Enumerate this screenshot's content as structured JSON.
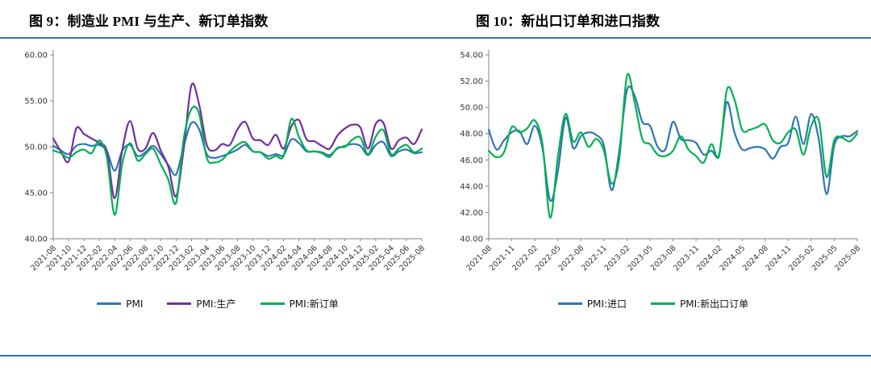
{
  "page": {
    "background": "#ffffff",
    "divider_color": "#2E75B6"
  },
  "chart_data": [
    {
      "type": "line",
      "title": "图 9：制造业 PMI 与生产、新订单指数",
      "ylim": [
        40,
        60
      ],
      "yticks": [
        40,
        45,
        50,
        55,
        60
      ],
      "ytick_format": "2dp",
      "x_tick_every": 2,
      "grid": false,
      "legend_position": "bottom",
      "x": [
        "2021-08",
        "2021-09",
        "2021-10",
        "2021-11",
        "2021-12",
        "2022-01",
        "2022-02",
        "2022-03",
        "2022-04",
        "2022-05",
        "2022-06",
        "2022-07",
        "2022-08",
        "2022-09",
        "2022-10",
        "2022-11",
        "2022-12",
        "2023-01",
        "2023-02",
        "2023-03",
        "2023-04",
        "2023-05",
        "2023-06",
        "2023-07",
        "2023-08",
        "2023-09",
        "2023-10",
        "2023-11",
        "2023-12",
        "2024-01",
        "2024-02",
        "2024-03",
        "2024-04",
        "2024-05",
        "2024-06",
        "2024-07",
        "2024-08",
        "2024-09",
        "2024-10",
        "2024-11",
        "2024-12",
        "2025-01",
        "2025-02",
        "2025-03",
        "2025-04",
        "2025-05",
        "2025-06",
        "2025-07",
        "2025-08"
      ],
      "series": [
        {
          "name": "PMI",
          "color": "#2E75B6",
          "values": [
            50.1,
            49.6,
            49.2,
            50.1,
            50.3,
            50.1,
            50.2,
            49.5,
            47.4,
            49.6,
            50.2,
            49.0,
            49.4,
            50.1,
            49.2,
            48.0,
            47.0,
            50.1,
            52.6,
            51.9,
            49.2,
            48.8,
            49.0,
            49.3,
            49.7,
            50.2,
            49.5,
            49.4,
            49.0,
            49.2,
            49.1,
            50.8,
            50.4,
            49.5,
            49.5,
            49.4,
            49.1,
            49.8,
            50.1,
            50.3,
            50.1,
            49.1,
            50.2,
            50.5,
            49.0,
            49.5,
            49.7,
            49.3,
            49.4
          ]
        },
        {
          "name": "PMI:生产",
          "color": "#7030A0",
          "values": [
            50.9,
            49.5,
            48.4,
            52.0,
            51.4,
            50.9,
            50.4,
            49.5,
            44.4,
            49.7,
            52.8,
            49.8,
            49.8,
            51.5,
            49.6,
            47.8,
            44.6,
            49.8,
            56.7,
            54.6,
            50.2,
            49.6,
            50.3,
            50.2,
            51.9,
            52.7,
            50.9,
            50.7,
            50.2,
            51.3,
            49.8,
            52.2,
            52.9,
            50.8,
            50.6,
            50.1,
            49.8,
            51.2,
            52.0,
            52.4,
            52.1,
            49.8,
            52.5,
            52.6,
            49.8,
            50.7,
            51.0,
            50.3,
            51.9
          ]
        },
        {
          "name": "PMI:新订单",
          "color": "#00B050",
          "values": [
            49.6,
            49.3,
            48.8,
            49.4,
            49.7,
            49.3,
            50.7,
            48.8,
            42.6,
            48.2,
            50.4,
            48.5,
            49.2,
            49.8,
            48.1,
            46.4,
            43.9,
            50.9,
            54.1,
            53.6,
            48.8,
            48.3,
            48.6,
            49.5,
            50.2,
            50.5,
            49.5,
            49.4,
            48.7,
            49.0,
            49.0,
            53.0,
            51.1,
            49.6,
            49.5,
            49.3,
            48.9,
            49.9,
            50.0,
            50.8,
            51.0,
            49.2,
            51.1,
            51.8,
            49.2,
            49.8,
            50.2,
            49.4,
            49.8
          ]
        }
      ]
    },
    {
      "type": "line",
      "title": "图 10：新出口订单和进口指数",
      "ylim": [
        40,
        54
      ],
      "yticks": [
        40,
        42,
        44,
        46,
        48,
        50,
        52,
        54
      ],
      "ytick_format": "2dp",
      "x_tick_every": 3,
      "grid": false,
      "legend_position": "bottom",
      "x": [
        "2021-08",
        "2021-09",
        "2021-10",
        "2021-11",
        "2021-12",
        "2022-01",
        "2022-02",
        "2022-03",
        "2022-04",
        "2022-05",
        "2022-06",
        "2022-07",
        "2022-08",
        "2022-09",
        "2022-10",
        "2022-11",
        "2022-12",
        "2023-01",
        "2023-02",
        "2023-03",
        "2023-04",
        "2023-05",
        "2023-06",
        "2023-07",
        "2023-08",
        "2023-09",
        "2023-10",
        "2023-11",
        "2023-12",
        "2024-01",
        "2024-02",
        "2024-03",
        "2024-04",
        "2024-05",
        "2024-06",
        "2024-07",
        "2024-08",
        "2024-09",
        "2024-10",
        "2024-11",
        "2024-12",
        "2025-01",
        "2025-02",
        "2025-03",
        "2025-04",
        "2025-05",
        "2025-06",
        "2025-07",
        "2025-08"
      ],
      "series": [
        {
          "name": "PMI:进口",
          "color": "#2E75B6",
          "values": [
            48.3,
            46.8,
            47.5,
            48.1,
            48.2,
            47.2,
            48.6,
            46.9,
            42.9,
            45.1,
            49.2,
            46.9,
            47.8,
            48.1,
            47.9,
            47.1,
            43.7,
            46.7,
            51.3,
            50.9,
            48.9,
            48.6,
            47.0,
            46.8,
            48.9,
            47.6,
            47.5,
            47.3,
            46.4,
            46.7,
            46.4,
            50.4,
            48.1,
            46.8,
            46.9,
            47.0,
            46.8,
            46.1,
            47.0,
            47.3,
            49.3,
            47.2,
            49.5,
            47.5,
            43.4,
            47.1,
            47.8,
            47.8,
            48.2
          ]
        },
        {
          "name": "PMI:新出口订单",
          "color": "#00B050",
          "values": [
            46.7,
            46.2,
            46.6,
            48.5,
            48.1,
            48.4,
            49.0,
            47.2,
            41.6,
            46.2,
            49.5,
            47.4,
            48.1,
            47.0,
            47.6,
            46.7,
            44.2,
            46.1,
            52.4,
            50.4,
            47.6,
            47.2,
            46.4,
            46.3,
            46.7,
            47.8,
            46.8,
            46.3,
            45.8,
            47.2,
            46.3,
            51.3,
            50.6,
            48.3,
            48.3,
            48.5,
            48.7,
            47.5,
            47.3,
            48.1,
            48.3,
            46.4,
            48.6,
            49.0,
            44.7,
            47.5,
            47.7,
            47.4,
            48.0
          ]
        }
      ]
    }
  ]
}
